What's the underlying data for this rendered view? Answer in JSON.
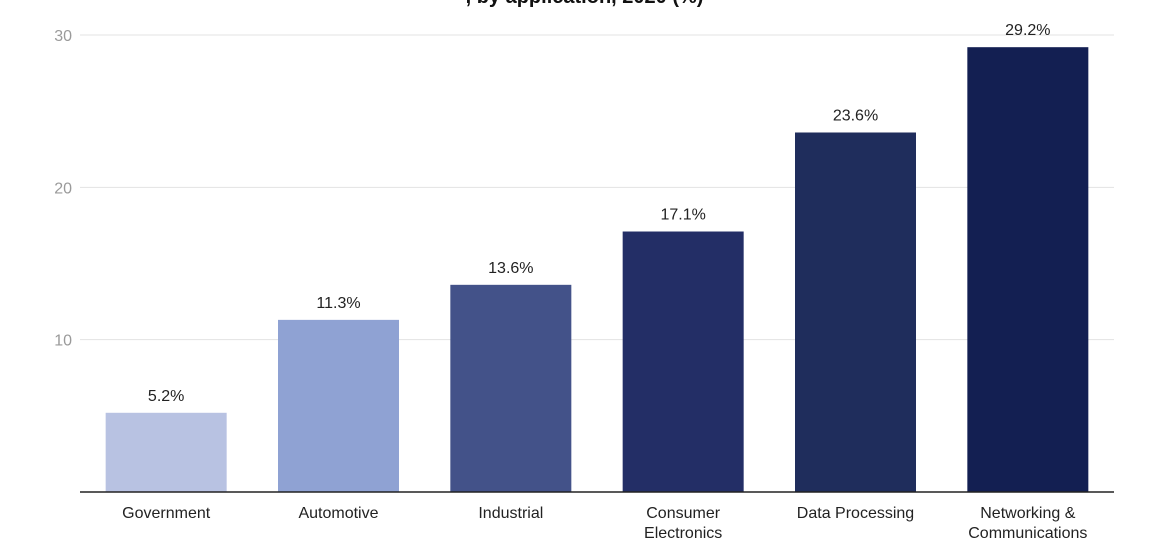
{
  "chart_data": {
    "type": "bar",
    "title": ", by application, 2020 (%)",
    "xlabel": "",
    "ylabel": "",
    "ylim": [
      0,
      30
    ],
    "yticks": [
      10,
      20,
      30
    ],
    "grid": true,
    "legend": "none",
    "categories": [
      [
        "Government"
      ],
      [
        "Automotive"
      ],
      [
        "Industrial"
      ],
      [
        "Consumer",
        "Electronics"
      ],
      [
        "Data Processing"
      ],
      [
        "Networking &",
        "Communications"
      ]
    ],
    "values": [
      5.2,
      11.3,
      13.6,
      17.1,
      23.6,
      29.2
    ],
    "value_labels": [
      "5.2%",
      "11.3%",
      "13.6%",
      "17.1%",
      "23.6%",
      "29.2%"
    ],
    "colors": [
      "#b8c2e2",
      "#8fa2d3",
      "#435289",
      "#232e66",
      "#1f2d5c",
      "#131f52"
    ]
  }
}
